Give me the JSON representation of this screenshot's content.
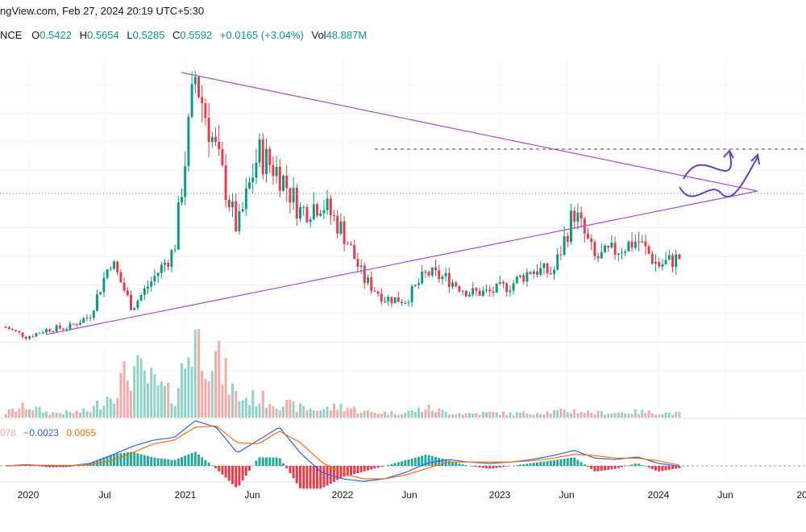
{
  "header": {
    "source_line": "ngView.com, Feb 27, 2024 20:19 UTC+5:30",
    "symbol_fragment": "NCE",
    "open_label": "O",
    "open": "0.5422",
    "high_label": "H",
    "high": "0.5654",
    "low_label": "L",
    "low": "0.5285",
    "close_label": "C",
    "close": "0.5592",
    "change": "+0.0165 (+3.04%)",
    "vol_label": "Vol",
    "vol": "48.887M"
  },
  "macd_legend": {
    "hist": "078",
    "macd": "−0.0023",
    "signal": "0.0055"
  },
  "colors": {
    "up": "#089981",
    "down": "#f23645",
    "pattern": "#b054d6",
    "macd": "#2962ff",
    "signal": "#ff6d00",
    "resistance": "#a04a6a"
  },
  "chart_data": {
    "type": "candlestick",
    "title": "",
    "xlabel": "",
    "ylabel": "",
    "x_ticks": [
      "2020",
      "Jul",
      "2021",
      "Jun",
      "2022",
      "Jun",
      "2023",
      "Jun",
      "2024",
      "Jun",
      "20"
    ],
    "series": [
      {
        "name": "price",
        "x": [
          "2020-01",
          "2020-03",
          "2020-05",
          "2020-07",
          "2020-09",
          "2020-11",
          "2020-12",
          "2021-01",
          "2021-02",
          "2021-04",
          "2021-05",
          "2021-07",
          "2021-09",
          "2021-11",
          "2022-01",
          "2022-03",
          "2022-04",
          "2022-05",
          "2022-06",
          "2022-07",
          "2022-09",
          "2022-10",
          "2022-11",
          "2023-01",
          "2023-03",
          "2023-05",
          "2023-07",
          "2023-08",
          "2023-09",
          "2023-11",
          "2023-12",
          "2024-01",
          "2024-02"
        ],
        "y": [
          0.2,
          0.15,
          0.19,
          0.2,
          0.26,
          0.55,
          0.3,
          0.45,
          0.6,
          1.5,
          1.1,
          0.7,
          1.1,
          1.0,
          0.8,
          0.85,
          0.7,
          0.45,
          0.35,
          0.34,
          0.48,
          0.45,
          0.38,
          0.38,
          0.42,
          0.5,
          0.48,
          0.8,
          0.55,
          0.6,
          0.65,
          0.52,
          0.56
        ]
      }
    ],
    "volume": [
      0.05,
      0.12,
      0.05,
      0.05,
      0.07,
      0.25,
      0.5,
      0.35,
      0.2,
      0.9,
      0.6,
      0.2,
      0.2,
      0.15,
      0.1,
      0.08,
      0.12,
      0.06,
      0.05,
      0.05,
      0.1,
      0.05,
      0.04,
      0.05,
      0.04,
      0.05,
      0.06,
      0.07,
      0.05,
      0.05,
      0.06,
      0.05,
      0.04
    ],
    "macd": [
      0,
      0.01,
      0,
      0,
      0.02,
      0.08,
      0.15,
      0.2,
      0.22,
      0.35,
      0.3,
      0.1,
      0.2,
      0.3,
      0.1,
      -0.05,
      -0.1,
      -0.12,
      -0.1,
      -0.05,
      0.02,
      0.05,
      0.03,
      0.02,
      0.03,
      0.05,
      0.08,
      0.12,
      0.06,
      0.05,
      0.07,
      0.02,
      -0.0023
    ],
    "signal": [
      0,
      0.005,
      0.005,
      0.004,
      0.01,
      0.04,
      0.1,
      0.17,
      0.2,
      0.3,
      0.31,
      0.18,
      0.17,
      0.27,
      0.18,
      0.03,
      -0.06,
      -0.1,
      -0.1,
      -0.07,
      -0.02,
      0.03,
      0.03,
      0.03,
      0.03,
      0.04,
      0.06,
      0.09,
      0.08,
      0.06,
      0.06,
      0.04,
      0.0055
    ],
    "annotations": [
      "symmetrical triangle",
      "horizontal resistance",
      "projected breakout paths"
    ]
  }
}
